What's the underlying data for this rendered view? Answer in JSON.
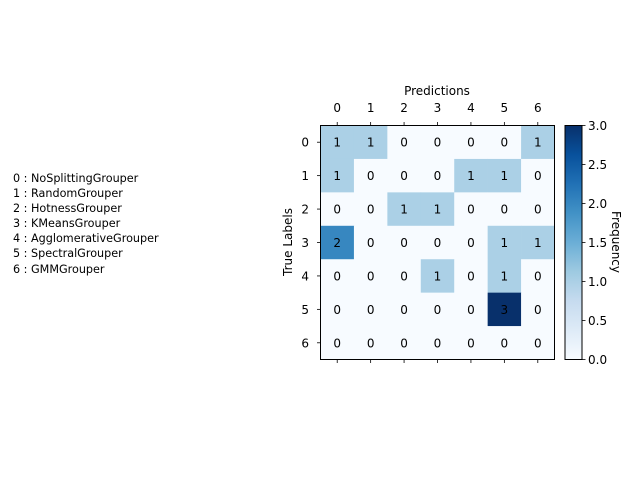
{
  "chart_data": {
    "type": "heatmap",
    "xlabel": "Predictions",
    "ylabel": "True Labels",
    "x_ticks": [
      "0",
      "1",
      "2",
      "3",
      "4",
      "5",
      "6"
    ],
    "y_ticks": [
      "0",
      "1",
      "2",
      "3",
      "4",
      "5",
      "6"
    ],
    "matrix": [
      [
        1,
        1,
        0,
        0,
        0,
        0,
        1
      ],
      [
        1,
        0,
        0,
        0,
        1,
        1,
        0
      ],
      [
        0,
        0,
        1,
        1,
        0,
        0,
        0
      ],
      [
        2,
        0,
        0,
        0,
        0,
        1,
        1
      ],
      [
        0,
        0,
        0,
        1,
        0,
        1,
        0
      ],
      [
        0,
        0,
        0,
        0,
        0,
        3,
        0
      ],
      [
        0,
        0,
        0,
        0,
        0,
        0,
        0
      ]
    ],
    "colorbar": {
      "label": "Frequency",
      "range": [
        0.0,
        3.0
      ],
      "ticks": [
        "0.0",
        "0.5",
        "1.0",
        "1.5",
        "2.0",
        "2.5",
        "3.0"
      ],
      "colormap": "Blues"
    },
    "class_legend": [
      "0 : NoSplittingGrouper",
      "1 : RandomGrouper",
      "2 : HotnessGrouper",
      "3 : KMeansGrouper",
      "4 : AgglomerativeGrouper",
      "5 : SpectralGrouper",
      "6 : GMMGrouper"
    ]
  }
}
